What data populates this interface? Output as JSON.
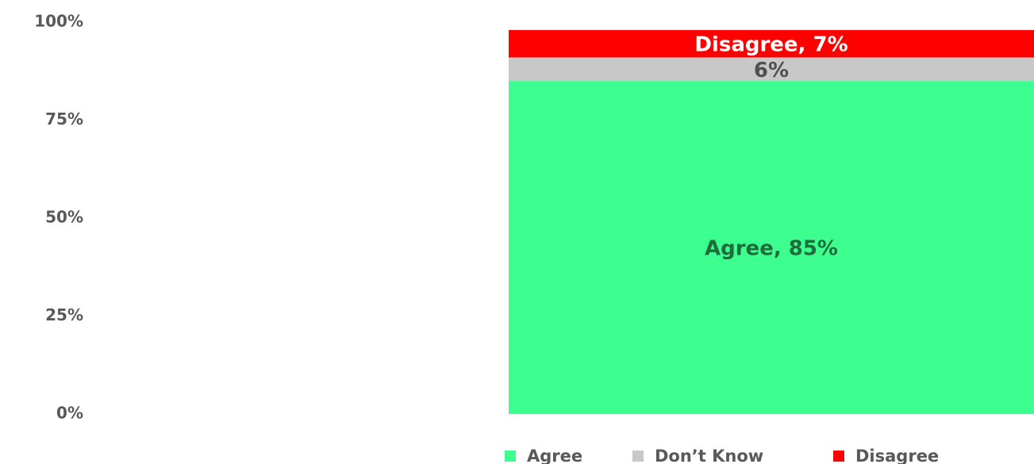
{
  "chart_data": {
    "type": "stacked_bar",
    "categories": [
      null
    ],
    "series": [
      {
        "name": "Agree",
        "color": "#3dff8f",
        "values": [
          85
        ],
        "value_labels": [
          "Agree, 85%"
        ]
      },
      {
        "name": "Don’t Know",
        "color": "#c8c8c8",
        "values": [
          6
        ],
        "value_labels": [
          "6%"
        ]
      },
      {
        "name": "Disagree",
        "color": "#ff0000",
        "values": [
          7
        ],
        "value_labels": [
          "Disagree, 7%"
        ]
      }
    ],
    "ylim": [
      0,
      100
    ],
    "yticks": [
      {
        "value": 0,
        "label": "0%"
      },
      {
        "value": 25,
        "label": "25%"
      },
      {
        "value": 50,
        "label": "50%"
      },
      {
        "value": 75,
        "label": "75%"
      },
      {
        "value": 100,
        "label": "100%"
      }
    ],
    "legend": "bottom"
  }
}
